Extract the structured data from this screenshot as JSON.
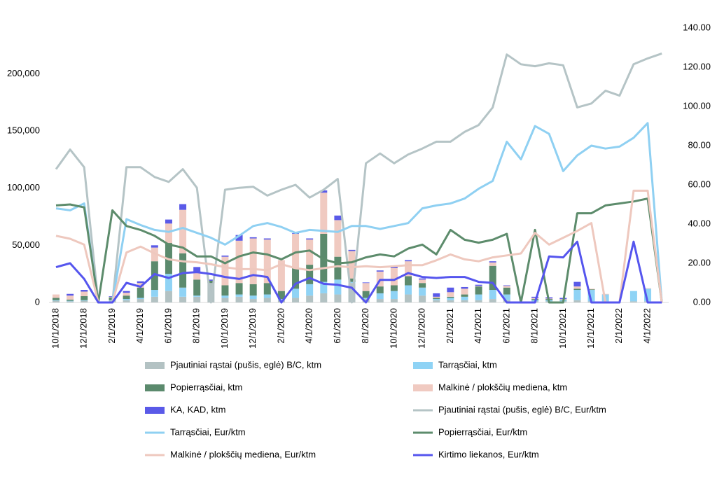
{
  "chart_data": {
    "type": "bar",
    "categories": [
      "10/1/2018",
      null,
      "12/1/2018",
      null,
      "2/1/2019",
      null,
      "4/1/2019",
      null,
      "6/1/2019",
      null,
      "8/1/2019",
      null,
      "10/1/2019",
      null,
      "12/1/2019",
      null,
      "2/1/2020",
      null,
      "4/1/2020",
      null,
      "6/1/2020",
      null,
      "8/1/2020",
      null,
      "10/1/2020",
      null,
      "12/1/2020",
      null,
      "2/1/2021",
      null,
      "4/1/2021",
      null,
      "6/1/2021",
      null,
      "8/1/2021",
      null,
      "10/1/2021",
      null,
      "12/1/2021",
      null,
      "2/1/2022",
      null,
      "4/1/2022",
      null
    ],
    "ylim": [
      0,
      240000
    ],
    "yticks": [
      0,
      {
        "value": 50000,
        "label": "50,000"
      },
      {
        "value": 100000,
        "label": "100,000"
      },
      {
        "value": 150000,
        "label": "150,000"
      },
      {
        "value": 200000,
        "label": "200,000"
      }
    ],
    "y2lim": [
      0,
      140
    ],
    "y2ticks": [
      {
        "value": 0,
        "label": "0.00"
      },
      {
        "value": 20,
        "label": "20.00"
      },
      {
        "value": 40,
        "label": "40.00"
      },
      {
        "value": 60,
        "label": "60.00"
      },
      {
        "value": 80,
        "label": "80.00"
      },
      {
        "value": 100,
        "label": "100.00"
      },
      {
        "value": 120,
        "label": "120.00"
      },
      {
        "value": 140,
        "label": "140.00"
      }
    ],
    "series": [
      {
        "name": "Pjautiniai rąstai (pušis, eglė) B/C, ktm",
        "type": "bar",
        "color": "#b3c2c3",
        "values": [
          1500,
          1000,
          1500,
          0,
          1500,
          2000,
          3000,
          5000,
          10000,
          5000,
          5000,
          17000,
          4000,
          5000,
          3000,
          4000,
          2000,
          4000,
          6000,
          8000,
          7000,
          17000,
          3000,
          3000,
          3000,
          7000,
          6000,
          2000,
          2000,
          2000,
          2000,
          3000,
          2000,
          0,
          1000,
          1000,
          1000,
          2000,
          1000,
          1000,
          0,
          1000,
          1000,
          0
        ]
      },
      {
        "name": "Tarrąsčiai, ktm",
        "type": "bar",
        "color": "#8fd3f5",
        "values": [
          500,
          500,
          500,
          0,
          500,
          1000,
          1000,
          6000,
          15000,
          8000,
          1000,
          0,
          2000,
          2000,
          3000,
          3000,
          1000,
          8000,
          10000,
          10000,
          13000,
          1000,
          1000,
          5000,
          7000,
          8000,
          7000,
          1000,
          2000,
          3000,
          5000,
          8000,
          5000,
          0,
          1000,
          1000,
          1000,
          9000,
          10000,
          6000,
          0,
          9000,
          11000,
          0
        ]
      },
      {
        "name": "Popierrąsčiai, ktm",
        "type": "bar",
        "color": "#5b8a6d",
        "values": [
          2000,
          1000,
          3500,
          0,
          2500,
          3000,
          9000,
          25000,
          27000,
          30000,
          14000,
          2000,
          9000,
          10000,
          10000,
          10000,
          7000,
          18000,
          17000,
          42000,
          20000,
          3000,
          6000,
          6000,
          5000,
          8000,
          4000,
          1000,
          1000,
          2000,
          7000,
          21000,
          6000,
          0,
          1000,
          1000,
          500,
          1000,
          500,
          0,
          0,
          0,
          0,
          0
        ]
      },
      {
        "name": "Malkinė / plokščių mediena, ktm",
        "type": "bar",
        "color": "#f0cac1",
        "values": [
          3000,
          3500,
          4000,
          0,
          500,
          2500,
          4000,
          12000,
          17000,
          38000,
          7000,
          0,
          25000,
          37000,
          40000,
          38000,
          27000,
          30000,
          22000,
          36000,
          32000,
          24000,
          7000,
          13000,
          15000,
          13000,
          3000,
          1000,
          4000,
          5000,
          500,
          3000,
          1500,
          0,
          1000,
          500,
          500,
          2000,
          500,
          500,
          0,
          0,
          500,
          0
        ]
      },
      {
        "name": "KA, KAD, ktm",
        "type": "bar",
        "color": "#5a5ae8",
        "values": [
          0,
          1500,
          1500,
          0,
          500,
          1500,
          1500,
          2000,
          3500,
          5000,
          4000,
          1000,
          1000,
          5000,
          1000,
          1000,
          0,
          500,
          1000,
          2000,
          4000,
          1000,
          500,
          1000,
          1000,
          1000,
          1000,
          3000,
          4000,
          1500,
          1000,
          1000,
          500,
          0,
          1000,
          1000,
          1000,
          4000,
          0,
          0,
          0,
          0,
          0,
          0
        ]
      },
      {
        "name": "Pjautiniai rąstai (pušis, eglė) B/C, Eur/ktm",
        "type": "line",
        "axis": "y2",
        "color": "#b5c4c6",
        "values": [
          68,
          78,
          69,
          0,
          0,
          69,
          69,
          64,
          61.5,
          68,
          58.5,
          0,
          57.5,
          58.5,
          59,
          54.5,
          57.5,
          60,
          53.5,
          57.5,
          63,
          0,
          71,
          76,
          71,
          75.5,
          78.5,
          82,
          82,
          87,
          90.5,
          99.5,
          126.5,
          121.5,
          120.5,
          122,
          121,
          99.5,
          101.5,
          108,
          105.5,
          121.5,
          124.5,
          127
        ]
      },
      {
        "name": "Tarrąsčiai, Eur/ktm",
        "type": "line",
        "axis": "y2",
        "color": "#8fd0f2",
        "values": [
          48,
          47,
          50.5,
          0,
          0,
          42.5,
          39.5,
          37,
          36,
          38,
          35.5,
          33,
          29.5,
          34,
          39,
          40.5,
          38.5,
          35.5,
          37,
          36.5,
          36,
          39,
          39,
          37.5,
          39,
          40.5,
          48,
          49.5,
          50.5,
          53,
          58,
          62,
          82,
          73,
          90,
          86,
          67,
          75,
          80,
          78.5,
          79.5,
          84,
          91.5,
          0
        ]
      },
      {
        "name": "Popierrąsčiai, Eur/ktm",
        "type": "line",
        "axis": "y2",
        "color": "#5d8c6c",
        "values": [
          49.5,
          50,
          48.5,
          0,
          47,
          39,
          37,
          34,
          29.5,
          28,
          23.5,
          23.5,
          20,
          23.5,
          25.5,
          24.5,
          22,
          25.5,
          26.5,
          22,
          20,
          20.5,
          23,
          24.5,
          23.5,
          27.5,
          29.5,
          24.5,
          37,
          32,
          30.5,
          32,
          35,
          0,
          37,
          0,
          0,
          45.5,
          45.5,
          49.5,
          50.5,
          51.5,
          53,
          0
        ]
      },
      {
        "name": "Malkinė / plokščių mediena, Eur/ktm",
        "type": "line",
        "axis": "y2",
        "color": "#eec8be",
        "values": [
          34,
          32.5,
          29.5,
          0,
          0,
          25.5,
          28.5,
          25,
          22,
          21,
          20.5,
          19.5,
          18,
          17,
          17,
          16.5,
          19.5,
          17.5,
          16.5,
          17.5,
          18.5,
          18,
          18.5,
          18,
          18.5,
          19,
          19,
          21.5,
          24.5,
          22,
          21,
          23,
          24,
          25,
          35.5,
          29.5,
          33,
          36.5,
          40.5,
          0,
          0,
          57,
          57,
          0
        ]
      },
      {
        "name": "Kirtimo liekanos, Eur/ktm",
        "type": "line",
        "axis": "y2",
        "color": "#5555ee",
        "values": [
          18,
          20,
          12,
          0,
          0,
          10,
          8,
          14.5,
          12.5,
          15,
          15.5,
          14.5,
          13,
          12,
          14,
          13,
          0,
          9.5,
          12.5,
          9.5,
          9,
          7.5,
          0,
          11.5,
          11.5,
          15,
          13,
          12.5,
          13,
          13,
          10.5,
          10,
          0,
          0,
          0,
          23.5,
          23,
          31,
          0,
          0,
          0,
          31,
          0,
          0
        ]
      }
    ]
  }
}
